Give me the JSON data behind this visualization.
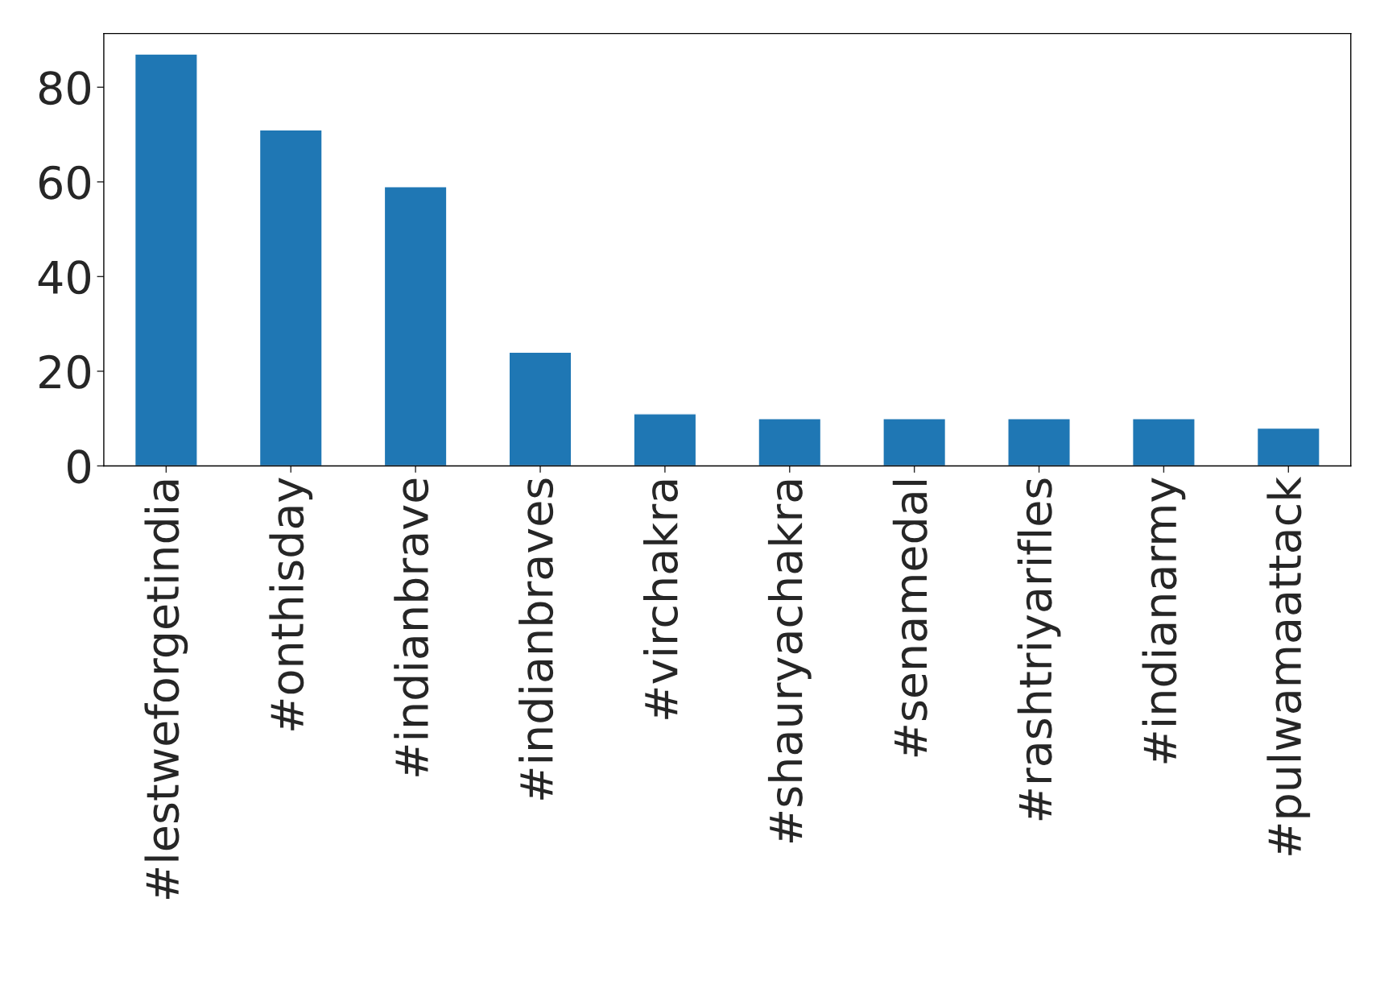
{
  "chart_data": {
    "type": "bar",
    "categories": [
      "#lestweforgetindia",
      "#onthisday",
      "#indianbrave",
      "#indianbraves",
      "#virchakra",
      "#shauryachakra",
      "#senamedal",
      "#rashtriyarifles",
      "#indianarmy",
      "#pulwamaattack"
    ],
    "values": [
      87,
      71,
      59,
      24,
      11,
      10,
      10,
      10,
      10,
      8
    ],
    "color": "#1f77b4",
    "ylim": [
      0,
      91.35
    ],
    "yticks": [
      0,
      20,
      40,
      60,
      80
    ],
    "grid": false,
    "legend": false
  }
}
